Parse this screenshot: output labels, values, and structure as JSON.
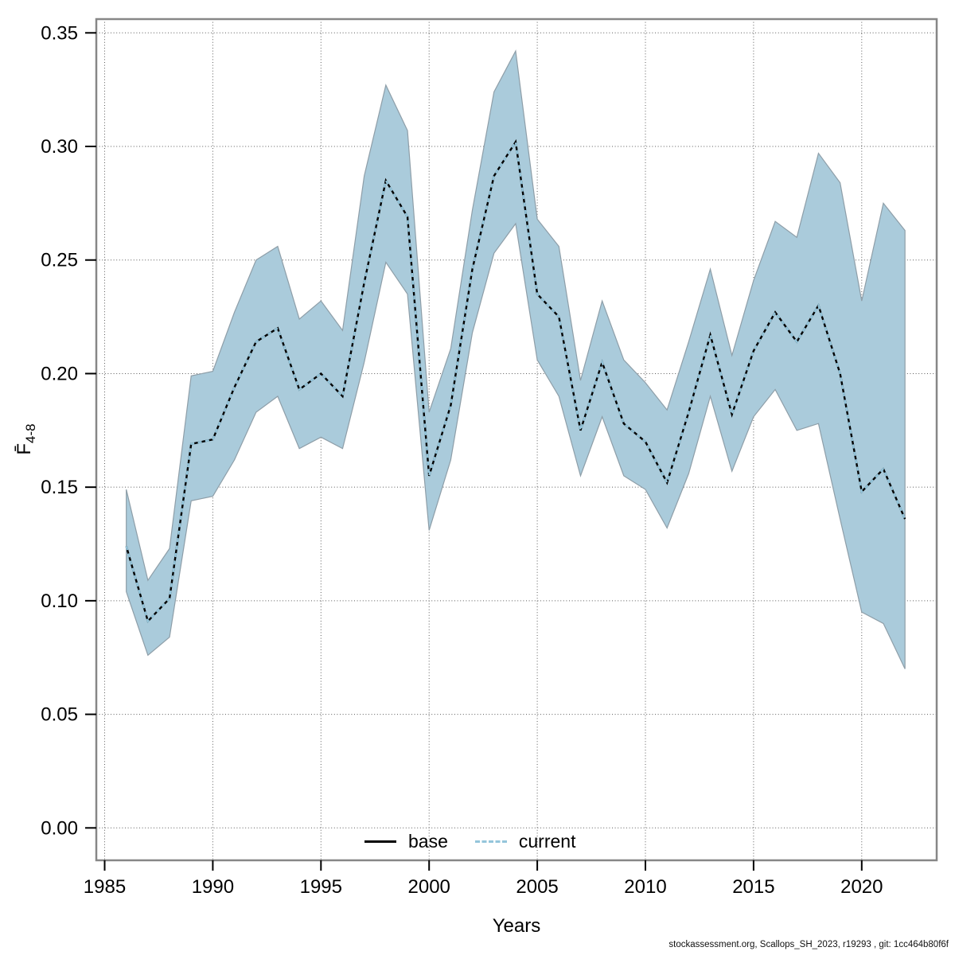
{
  "figure": {
    "y_label_main": "F̄",
    "y_label_sub": "4-8",
    "x_label": "Years"
  },
  "legend": {
    "items": [
      {
        "label": "base",
        "style": "solid",
        "color": "#000000"
      },
      {
        "label": "current",
        "style": "dashed",
        "color": "#94c5db"
      }
    ],
    "position": "bottom-center"
  },
  "footer": "stockassessment.org, Scallops_SH_2023, r19293 , git: 1cc464b80f6f",
  "colors": {
    "band_fill": "#aacbdb",
    "band_edge": "#8e9ea8",
    "base_line": "#000000",
    "current_line": "#94c5db",
    "grid": "#5b5b5b",
    "frame": "#878787"
  },
  "chart_data": {
    "type": "line",
    "title": "",
    "xlabel": "Years",
    "ylabel": "F̄4-8",
    "grid": "dotted",
    "legend_position": "bottom-center",
    "xlim": [
      1984.6,
      2023.5
    ],
    "ylim": [
      -0.014,
      0.356
    ],
    "x_ticks": [
      1985,
      1990,
      1995,
      2000,
      2005,
      2010,
      2015,
      2020
    ],
    "y_ticks": [
      {
        "v": 0.0,
        "label": "0.00"
      },
      {
        "v": 0.05,
        "label": "0.05"
      },
      {
        "v": 0.1,
        "label": "0.10"
      },
      {
        "v": 0.15,
        "label": "0.15"
      },
      {
        "v": 0.2,
        "label": "0.20"
      },
      {
        "v": 0.25,
        "label": "0.25"
      },
      {
        "v": 0.3,
        "label": "0.30"
      },
      {
        "v": 0.35,
        "label": "0.35"
      }
    ],
    "x": [
      1986,
      1987,
      1988,
      1989,
      1990,
      1991,
      1992,
      1993,
      1994,
      1995,
      1996,
      1997,
      1998,
      1999,
      2000,
      2001,
      2002,
      2003,
      2004,
      2005,
      2006,
      2007,
      2008,
      2009,
      2010,
      2011,
      2012,
      2013,
      2014,
      2015,
      2016,
      2017,
      2018,
      2019,
      2020,
      2021,
      2022
    ],
    "series": [
      {
        "name": "base",
        "line": "solid",
        "color": "#000000",
        "values": [
          0.124,
          0.091,
          0.101,
          0.169,
          0.171,
          0.194,
          0.214,
          0.22,
          0.193,
          0.2,
          0.19,
          0.24,
          0.285,
          0.269,
          0.155,
          0.186,
          0.246,
          0.287,
          0.302,
          0.235,
          0.225,
          0.175,
          0.205,
          0.178,
          0.17,
          0.152,
          0.183,
          0.217,
          0.182,
          0.21,
          0.227,
          0.214,
          0.23,
          0.2,
          0.148,
          0.158,
          0.136
        ]
      },
      {
        "name": "current",
        "line": "dashed",
        "color": "#94c5db",
        "values": [
          0.124,
          0.091,
          0.101,
          0.169,
          0.171,
          0.194,
          0.214,
          0.22,
          0.193,
          0.2,
          0.19,
          0.24,
          0.285,
          0.269,
          0.155,
          0.186,
          0.246,
          0.287,
          0.302,
          0.235,
          0.225,
          0.175,
          0.205,
          0.178,
          0.17,
          0.152,
          0.183,
          0.217,
          0.182,
          0.21,
          0.227,
          0.214,
          0.23,
          0.2,
          0.148,
          0.158,
          0.136
        ],
        "ci_lower": [
          0.104,
          0.076,
          0.084,
          0.144,
          0.146,
          0.162,
          0.183,
          0.19,
          0.167,
          0.172,
          0.167,
          0.205,
          0.249,
          0.235,
          0.131,
          0.162,
          0.218,
          0.253,
          0.266,
          0.206,
          0.19,
          0.155,
          0.181,
          0.155,
          0.149,
          0.132,
          0.156,
          0.19,
          0.157,
          0.181,
          0.193,
          0.175,
          0.178,
          0.136,
          0.095,
          0.09,
          0.07
        ],
        "ci_upper": [
          0.149,
          0.109,
          0.123,
          0.199,
          0.201,
          0.227,
          0.25,
          0.256,
          0.224,
          0.232,
          0.219,
          0.287,
          0.327,
          0.307,
          0.183,
          0.211,
          0.272,
          0.324,
          0.342,
          0.268,
          0.256,
          0.197,
          0.232,
          0.206,
          0.196,
          0.184,
          0.214,
          0.246,
          0.208,
          0.241,
          0.267,
          0.26,
          0.297,
          0.284,
          0.232,
          0.275,
          0.263
        ]
      }
    ]
  }
}
